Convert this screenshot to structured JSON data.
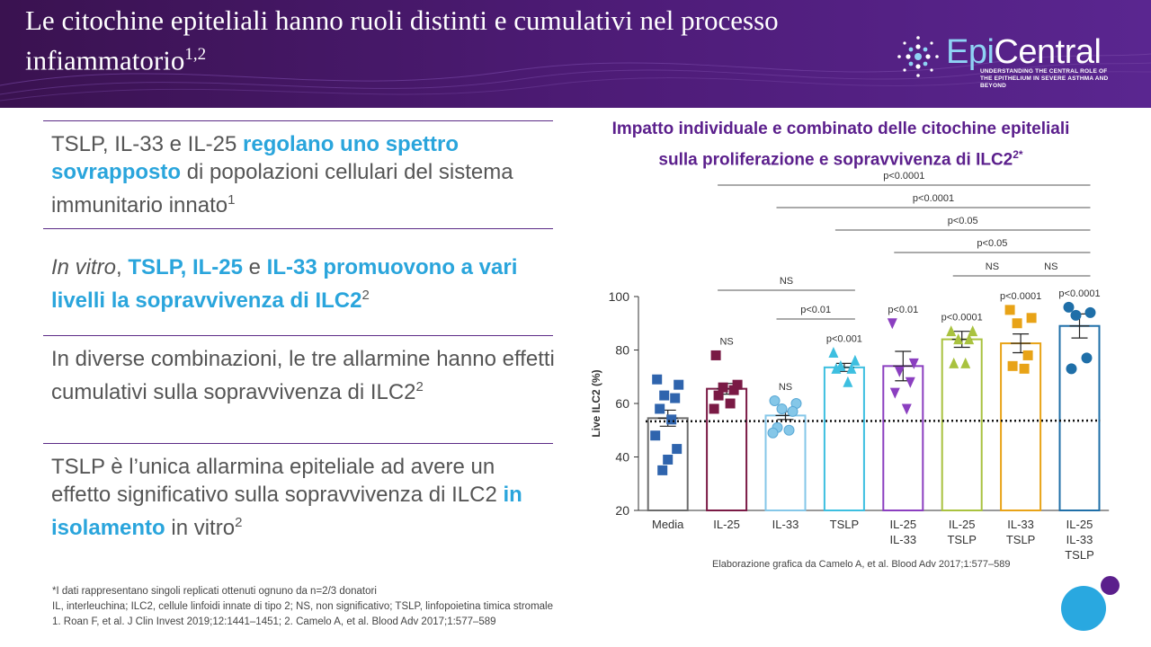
{
  "slide": {
    "title_main": "Le citochine epiteliali hanno ruoli distinti e cumulativi nel processo infiammatorio",
    "title_sup": "1,2",
    "logo": {
      "word_epi": "Epi",
      "word_central": "Central",
      "tagline": "UNDERSTANDING THE CENTRAL ROLE OF THE EPITHELIUM IN SEVERE ASTHMA AND BEYOND"
    }
  },
  "bullets": [
    {
      "parts": [
        {
          "text": "TSLP, IL-33 e IL-25 ",
          "style": "plain"
        },
        {
          "text": "regolano uno spettro sovrapposto",
          "style": "hl"
        },
        {
          "text": " di popolazioni cellulari del sistema immunitario innato",
          "style": "plain"
        },
        {
          "text": "1",
          "style": "sup"
        }
      ]
    },
    {
      "parts": [
        {
          "text": "In vitro",
          "style": "italic"
        },
        {
          "text": ", ",
          "style": "plain"
        },
        {
          "text": "TSLP, IL-25",
          "style": "hl"
        },
        {
          "text": " e ",
          "style": "plain"
        },
        {
          "text": "IL-33 promuovono a vari livelli la sopravvivenza di ILC2",
          "style": "hl"
        },
        {
          "text": "2",
          "style": "sup"
        }
      ]
    },
    {
      "parts": [
        {
          "text": "In diverse combinazioni, le tre allarmine hanno effetti cumulativi sulla sopravvivenza di ILC2",
          "style": "plain"
        },
        {
          "text": "2",
          "style": "sup"
        }
      ]
    },
    {
      "parts": [
        {
          "text": "TSLP è l’unica allarmina epiteliale ad avere un effetto significativo sulla sopravvivenza di ILC2 ",
          "style": "plain"
        },
        {
          "text": "in isolamento",
          "style": "hl"
        },
        {
          "text": " in vitro",
          "style": "plain"
        },
        {
          "text": "2",
          "style": "sup"
        }
      ]
    }
  ],
  "chart_title": {
    "text": "Impatto individuale e combinato delle citochine epiteliali sulla proliferazione e sopravvivenza di ILC2",
    "sup": "2*"
  },
  "chart_data": {
    "type": "bar",
    "ylabel": "Live ILC2 (%)",
    "ylim": [
      20,
      100
    ],
    "yticks": [
      20,
      40,
      60,
      80,
      100
    ],
    "baseline": 54,
    "categories": [
      {
        "lines": [
          "Media"
        ],
        "value": 54.5,
        "sem": 3,
        "color": "#6b6b6b",
        "marker_color": "#2f64ad",
        "marker": "square",
        "points": [
          69,
          67,
          63,
          62,
          58,
          54,
          48,
          43,
          39,
          35
        ],
        "label": ""
      },
      {
        "lines": [
          "IL-25"
        ],
        "value": 65.5,
        "sem": 2,
        "color": "#7a1a45",
        "marker_color": "#7a1a45",
        "marker": "square",
        "points": [
          78,
          67,
          66,
          65,
          63,
          60,
          58
        ],
        "label": "NS"
      },
      {
        "lines": [
          "IL-33"
        ],
        "value": 55.5,
        "sem": 1.5,
        "color": "#85c7e8",
        "marker_color": "#85c7e8",
        "marker": "circle",
        "points": [
          61,
          60,
          58,
          57,
          51,
          50,
          49
        ],
        "label": "NS"
      },
      {
        "lines": [
          "TSLP"
        ],
        "value": 73.5,
        "sem": 1.5,
        "color": "#3dbfe0",
        "marker_color": "#3dbfe0",
        "marker": "triangle",
        "points": [
          79,
          76,
          74,
          73,
          73,
          68
        ],
        "label": "p<0.001"
      },
      {
        "lines": [
          "IL-25",
          "IL-33"
        ],
        "value": 74,
        "sem": 5.5,
        "color": "#8b3fc0",
        "marker_color": "#8b3fc0",
        "marker": "triangle-down",
        "points": [
          90,
          75,
          72,
          68,
          64,
          58
        ],
        "label": "p<0.01"
      },
      {
        "lines": [
          "IL-25",
          "TSLP"
        ],
        "value": 84,
        "sem": 3,
        "color": "#a9c23f",
        "marker_color": "#a9c23f",
        "marker": "triangle",
        "points": [
          87,
          87,
          84,
          84,
          75,
          75
        ],
        "label": "p<0.0001"
      },
      {
        "lines": [
          "IL-33",
          "TSLP"
        ],
        "value": 82.5,
        "sem": 3.5,
        "color": "#e8a317",
        "marker_color": "#e8a317",
        "marker": "square",
        "points": [
          95,
          92,
          90,
          78,
          74,
          73
        ],
        "label": "p<0.0001"
      },
      {
        "lines": [
          "IL-25",
          "IL-33",
          "TSLP"
        ],
        "value": 89,
        "sem": 4.5,
        "color": "#1f6fa8",
        "marker_color": "#1f6fa8",
        "marker": "circle",
        "points": [
          96,
          94,
          93,
          77,
          73
        ],
        "label": "p<0.0001"
      }
    ],
    "comparisons": [
      {
        "from": 1,
        "to": 7,
        "label": "p<0.0001"
      },
      {
        "from": 2,
        "to": 7,
        "label": "p<0.0001"
      },
      {
        "from": 3,
        "to": 7,
        "label": "p<0.05"
      },
      {
        "from": 4,
        "to": 7,
        "label": "p<0.05"
      },
      {
        "from": 5,
        "to": 6,
        "label": "NS"
      },
      {
        "from": 6,
        "to": 7,
        "label": "NS"
      },
      {
        "from": 1,
        "to": 3,
        "label": "NS"
      },
      {
        "from": 2,
        "to": 3,
        "label": "p<0.01"
      }
    ]
  },
  "caption": "Elaborazione grafica da Camelo A, et al. Blood Adv 2017;1:577–589",
  "footnotes": [
    "*I dati rappresentano singoli replicati ottenuti ognuno da n=2/3 donatori",
    "IL, interleuchina; ILC2, cellule linfoidi innate di tipo 2; NS, non significativo; TSLP, linfopoietina timica stromale",
    "1. Roan F, et al. J Clin Invest 2019;12:1441–1451; 2. Camelo A, et al. Blood Adv 2017;1:577–589"
  ],
  "colors": {
    "header": "#4e1c78",
    "highlight": "#2aa5dc",
    "chart_title": "#5b1f8c",
    "deco_blue": "#29a8e0",
    "deco_purple": "#5b1f8c"
  }
}
